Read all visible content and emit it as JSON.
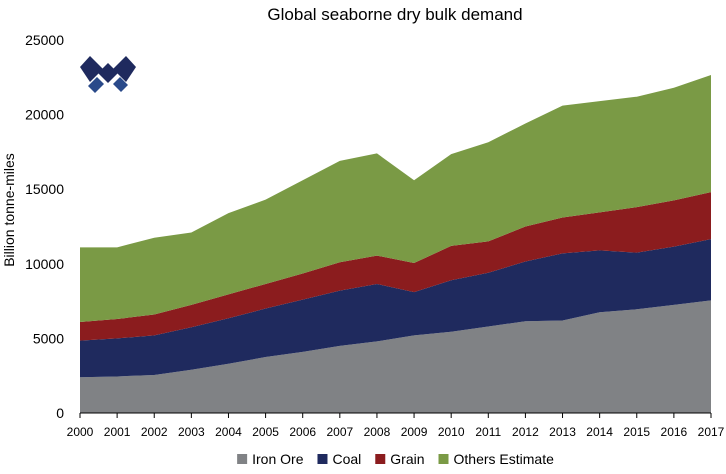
{
  "chart_data": {
    "type": "area",
    "stacked": true,
    "title": "Global seaborne dry bulk demand",
    "xlabel": "",
    "ylabel": "Billion tonne-miles",
    "x": [
      2000,
      2001,
      2002,
      2003,
      2004,
      2005,
      2006,
      2007,
      2008,
      2009,
      2010,
      2011,
      2012,
      2013,
      2014,
      2015,
      2016,
      2017
    ],
    "x_tick_labels": [
      "2000",
      "2001",
      "2002",
      "2003",
      "2004",
      "2005",
      "2006",
      "2007",
      "2008",
      "2009",
      "2010",
      "2011",
      "2012",
      "2013",
      "2014",
      "2015",
      "2016",
      "2017"
    ],
    "ylim": [
      0,
      25000
    ],
    "y_ticks": [
      0,
      5000,
      10000,
      15000,
      20000,
      25000
    ],
    "y_tick_labels": [
      "0",
      "5000",
      "10000",
      "15000",
      "20000",
      "25000"
    ],
    "legend_position": "bottom",
    "series": [
      {
        "name": "Iron Ore",
        "color": "#808285",
        "values": [
          2400,
          2450,
          2550,
          2900,
          3300,
          3750,
          4100,
          4500,
          4800,
          5200,
          5450,
          5800,
          6150,
          6200,
          6750,
          6950,
          7250,
          7550
        ]
      },
      {
        "name": "Coal",
        "color": "#1f2a5e",
        "values": [
          2450,
          2550,
          2650,
          2850,
          3050,
          3250,
          3500,
          3700,
          3850,
          2900,
          3450,
          3600,
          4000,
          4500,
          4150,
          3800,
          3900,
          4100
        ]
      },
      {
        "name": "Grain",
        "color": "#8b1c1e",
        "values": [
          1250,
          1300,
          1400,
          1500,
          1600,
          1650,
          1750,
          1900,
          1900,
          1950,
          2300,
          2100,
          2350,
          2400,
          2550,
          3050,
          3100,
          3150
        ]
      },
      {
        "name": "Others Estimate",
        "color": "#7a9a45",
        "values": [
          5000,
          4800,
          5150,
          4850,
          5450,
          5650,
          6250,
          6800,
          6850,
          5550,
          6150,
          6650,
          6900,
          7500,
          7450,
          7400,
          7550,
          7850
        ]
      }
    ]
  },
  "logo": {
    "name": "company-logo",
    "colors": [
      "#1f2a5e",
      "#2a4a8a"
    ]
  }
}
